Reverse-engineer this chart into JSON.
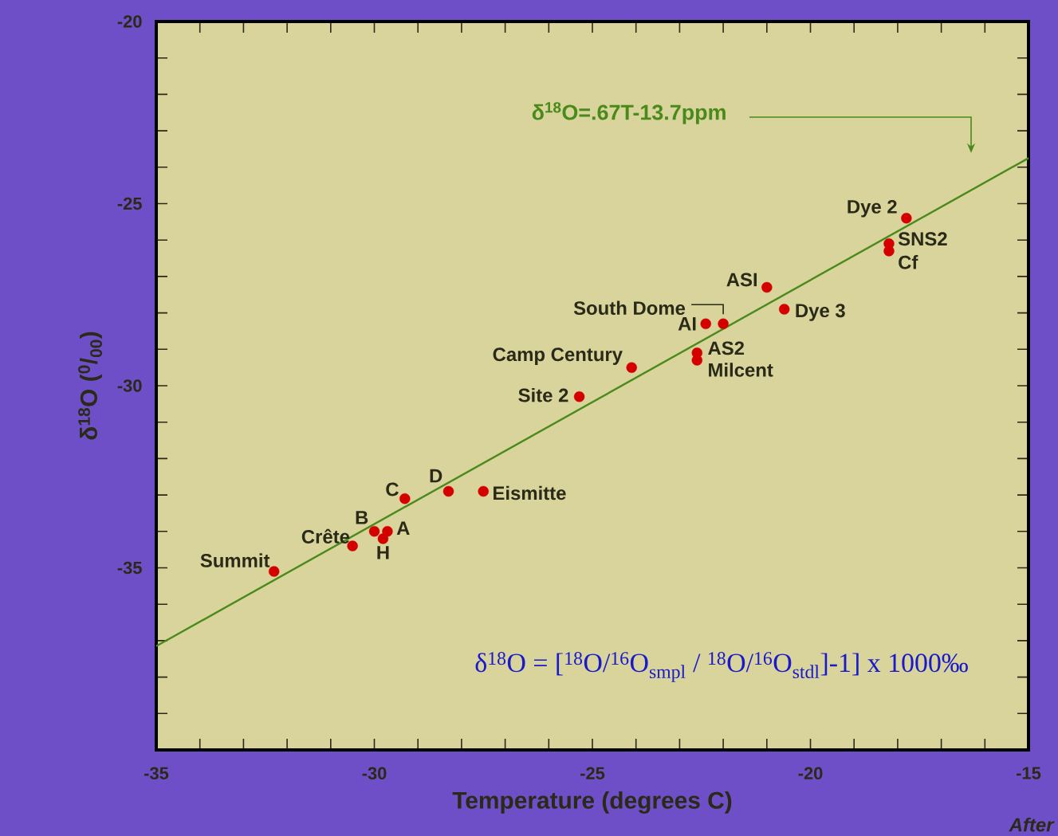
{
  "chart_data": {
    "type": "scatter",
    "xlabel": "Temperature (degrees C)",
    "ylabel": "δ$^{18}$O ($^{0}$/$_{00}$)",
    "xlim": [
      -35,
      -15
    ],
    "ylim": [
      -40,
      -20
    ],
    "xticks": [
      -35,
      -30,
      -25,
      -20,
      -15
    ],
    "yticks": [
      -20,
      -25,
      -30,
      -35,
      {
        "value": -40,
        "label": null
      }
    ],
    "grid": false,
    "marker": "circle",
    "series": [
      {
        "color": "#d40000",
        "x": [
          -32.3,
          -30.5,
          -30.0,
          -29.7,
          -29.8,
          -29.3,
          -28.3,
          -27.5,
          -25.3,
          -24.1,
          -22.6,
          -22.6,
          -22.4,
          -22.0,
          -21.0,
          -20.6,
          -17.8,
          -18.2,
          -18.2
        ],
        "values": [
          -35.1,
          -34.4,
          -34.0,
          -34.0,
          -34.2,
          -33.1,
          -32.9,
          -32.9,
          -30.3,
          -29.5,
          -29.1,
          -29.3,
          -28.3,
          -28.3,
          -27.3,
          -27.9,
          -25.4,
          -26.1,
          -26.3
        ]
      },
      {
        "type": "line",
        "marker": "none",
        "color": "#4a8a1a",
        "x": [
          -35,
          -15
        ],
        "values": [
          -37.15,
          -23.75
        ]
      }
    ],
    "annotations": [
      "δ$^{18}$O=.67T-13.7ppm",
      {
        "text": "Summit",
        "x": -32.3,
        "y": -35.1
      },
      {
        "text": "Crête",
        "x": -30.5,
        "y": -34.4
      },
      {
        "text": "B",
        "x": -30.0,
        "y": -34.0
      },
      {
        "text": "A",
        "x": -29.7,
        "y": -34.0
      },
      {
        "text": "H",
        "x": -29.8,
        "y": -34.2
      },
      {
        "text": "C",
        "x": -29.3,
        "y": -33.1
      },
      {
        "text": "D",
        "x": -28.3,
        "y": -32.9
      },
      {
        "text": "Eismitte",
        "x": -27.5,
        "y": -32.9
      },
      {
        "text": "Site 2",
        "x": -25.3,
        "y": -30.3
      },
      {
        "text": "Camp Century",
        "x": -24.1,
        "y": -29.5
      },
      {
        "text": "AS2",
        "x": -22.6,
        "y": -29.1
      },
      {
        "text": "Milcent",
        "x": -22.6,
        "y": -29.3
      },
      {
        "text": "AI",
        "x": -22.4,
        "y": -28.3
      },
      {
        "text": "South Dome",
        "x": -22.0,
        "y": -28.3
      },
      {
        "text": "ASI",
        "x": -21.0,
        "y": -27.3
      },
      {
        "text": "Dye 3",
        "x": -20.6,
        "y": -27.9
      },
      {
        "text": "Dye 2",
        "x": -17.8,
        "y": -25.4
      },
      {
        "text": "SNS2",
        "x": -18.2,
        "y": -26.1
      },
      {
        "text": "Cf",
        "x": -18.2,
        "y": -26.3
      },
      "δ$^{18}$O = [$^{18}$O/$^{16}$O$_{smpl}$ / $^{18}$O/$^{16}$O$_{stdl}$]-1] x 1000‰",
      "After"
    ]
  }
}
